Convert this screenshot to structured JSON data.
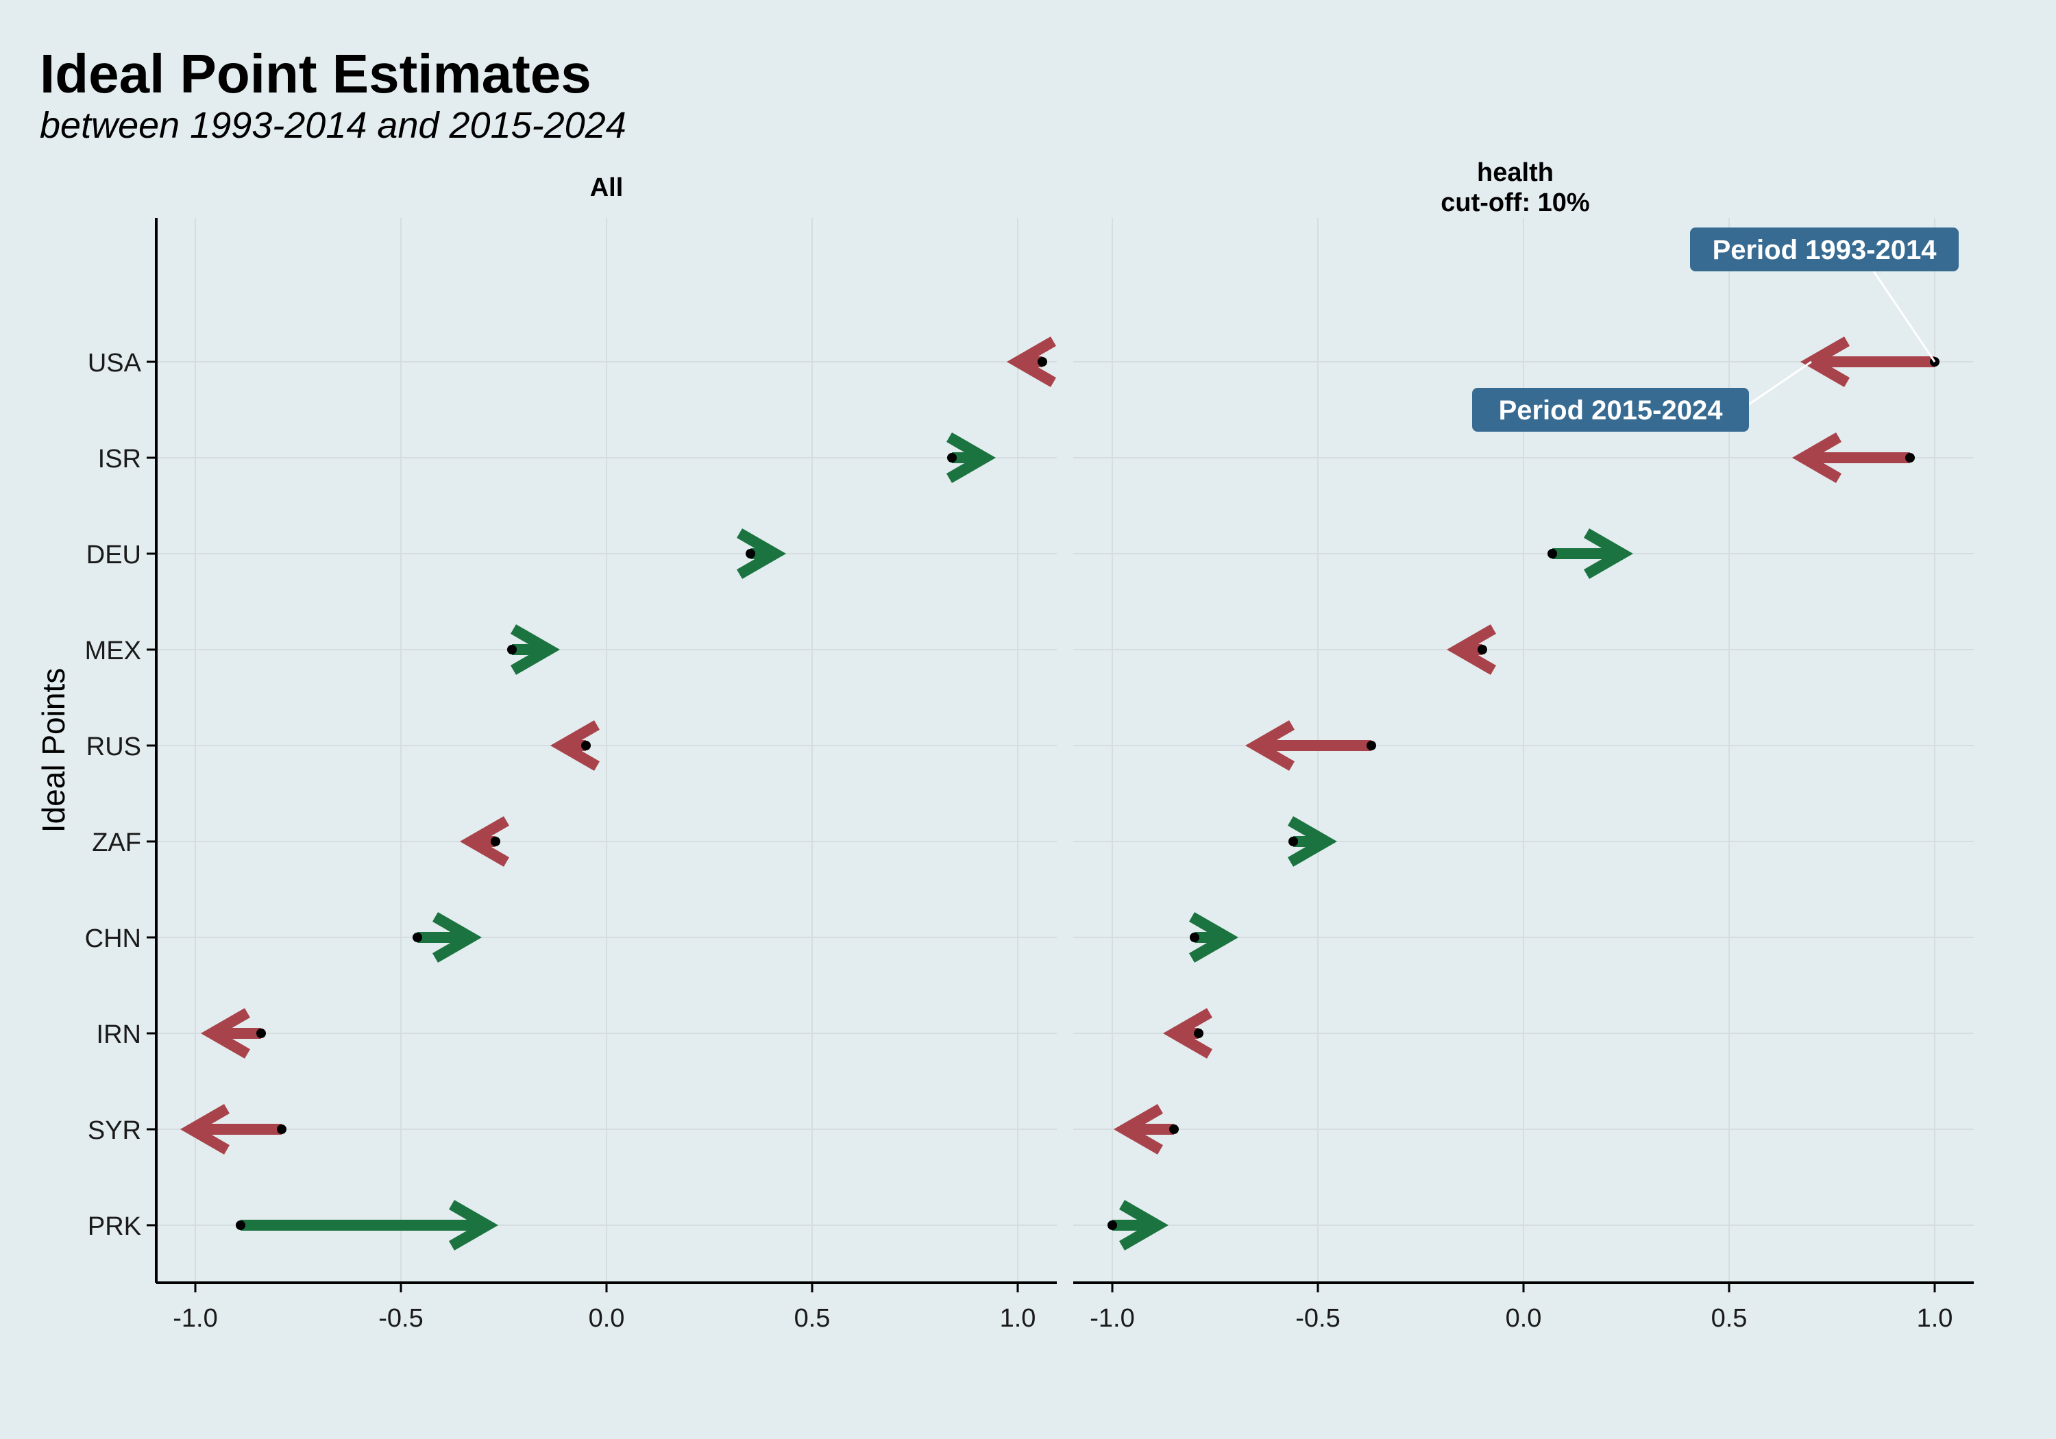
{
  "title": "Ideal Point Estimates",
  "subtitle": "between 1993-2014 and 2015-2024",
  "ylabel": "Ideal Points",
  "colors": {
    "increase": "#1b7340",
    "decrease": "#a8434b",
    "dot": "#000000",
    "label_bg": "#376b92",
    "grid": "#d5dde0",
    "background": "#e3ecee"
  },
  "chart_data": {
    "type": "arrow",
    "countries": [
      "USA",
      "ISR",
      "DEU",
      "MEX",
      "RUS",
      "ZAF",
      "CHN",
      "IRN",
      "SYR",
      "PRK"
    ],
    "x_ticks": [
      -1.0,
      -0.5,
      0.0,
      0.5,
      1.0
    ],
    "x_tick_labels": [
      "-1.0",
      "-0.5",
      "0.0",
      "0.5",
      "1.0"
    ],
    "xlim": [
      -1.1,
      1.1
    ],
    "panels": [
      {
        "name": "All",
        "title_lines": [
          "All"
        ],
        "series": [
          {
            "country": "USA",
            "from": 1.06,
            "to": 1.0
          },
          {
            "country": "ISR",
            "from": 0.84,
            "to": 0.92
          },
          {
            "country": "DEU",
            "from": 0.35,
            "to": 0.41
          },
          {
            "country": "MEX",
            "from": -0.23,
            "to": -0.14
          },
          {
            "country": "RUS",
            "from": -0.05,
            "to": -0.11
          },
          {
            "country": "ZAF",
            "from": -0.27,
            "to": -0.33
          },
          {
            "country": "CHN",
            "from": -0.46,
            "to": -0.33
          },
          {
            "country": "IRN",
            "from": -0.84,
            "to": -0.96
          },
          {
            "country": "SYR",
            "from": -0.79,
            "to": -1.01
          },
          {
            "country": "PRK",
            "from": -0.89,
            "to": -0.29
          }
        ]
      },
      {
        "name": "health cut-off: 10%",
        "title_lines": [
          "health",
          "cut-off: 10%"
        ],
        "series": [
          {
            "country": "USA",
            "from": 1.0,
            "to": 0.7
          },
          {
            "country": "ISR",
            "from": 0.94,
            "to": 0.68
          },
          {
            "country": "DEU",
            "from": 0.07,
            "to": 0.24
          },
          {
            "country": "MEX",
            "from": -0.1,
            "to": -0.16
          },
          {
            "country": "RUS",
            "from": -0.37,
            "to": -0.65
          },
          {
            "country": "ZAF",
            "from": -0.56,
            "to": -0.48
          },
          {
            "country": "CHN",
            "from": -0.8,
            "to": -0.72
          },
          {
            "country": "IRN",
            "from": -0.79,
            "to": -0.85
          },
          {
            "country": "SYR",
            "from": -0.85,
            "to": -0.97
          },
          {
            "country": "PRK",
            "from": -1.0,
            "to": -0.89
          }
        ],
        "annotations": [
          {
            "text": "Period 1993-2014",
            "country": "USA",
            "x": 1.0
          },
          {
            "text": "Period 2015-2024",
            "country": "USA",
            "x": 0.7
          }
        ]
      }
    ]
  }
}
